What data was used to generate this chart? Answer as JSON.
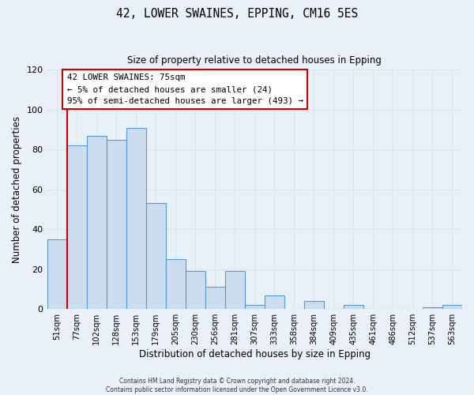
{
  "title": "42, LOWER SWAINES, EPPING, CM16 5ES",
  "subtitle": "Size of property relative to detached houses in Epping",
  "xlabel": "Distribution of detached houses by size in Epping",
  "ylabel": "Number of detached properties",
  "bar_labels": [
    "51sqm",
    "77sqm",
    "102sqm",
    "128sqm",
    "153sqm",
    "179sqm",
    "205sqm",
    "230sqm",
    "256sqm",
    "281sqm",
    "307sqm",
    "333sqm",
    "358sqm",
    "384sqm",
    "409sqm",
    "435sqm",
    "461sqm",
    "486sqm",
    "512sqm",
    "537sqm",
    "563sqm"
  ],
  "bar_heights": [
    35,
    82,
    87,
    85,
    91,
    53,
    25,
    19,
    11,
    19,
    2,
    7,
    0,
    4,
    0,
    2,
    0,
    0,
    0,
    1,
    2
  ],
  "bar_color": "#ccddf0",
  "bar_edge_color": "#5599cc",
  "highlight_line_color": "#cc0000",
  "ylim": [
    0,
    120
  ],
  "yticks": [
    0,
    20,
    40,
    60,
    80,
    100,
    120
  ],
  "annotation_title": "42 LOWER SWAINES: 75sqm",
  "annotation_line1": "← 5% of detached houses are smaller (24)",
  "annotation_line2": "95% of semi-detached houses are larger (493) →",
  "annotation_box_color": "#ffffff",
  "annotation_box_edge": "#cc0000",
  "footer_line1": "Contains HM Land Registry data © Crown copyright and database right 2024.",
  "footer_line2": "Contains public sector information licensed under the Open Government Licence v3.0.",
  "grid_color": "#d8e4f0",
  "background_color": "#eaf0f8"
}
